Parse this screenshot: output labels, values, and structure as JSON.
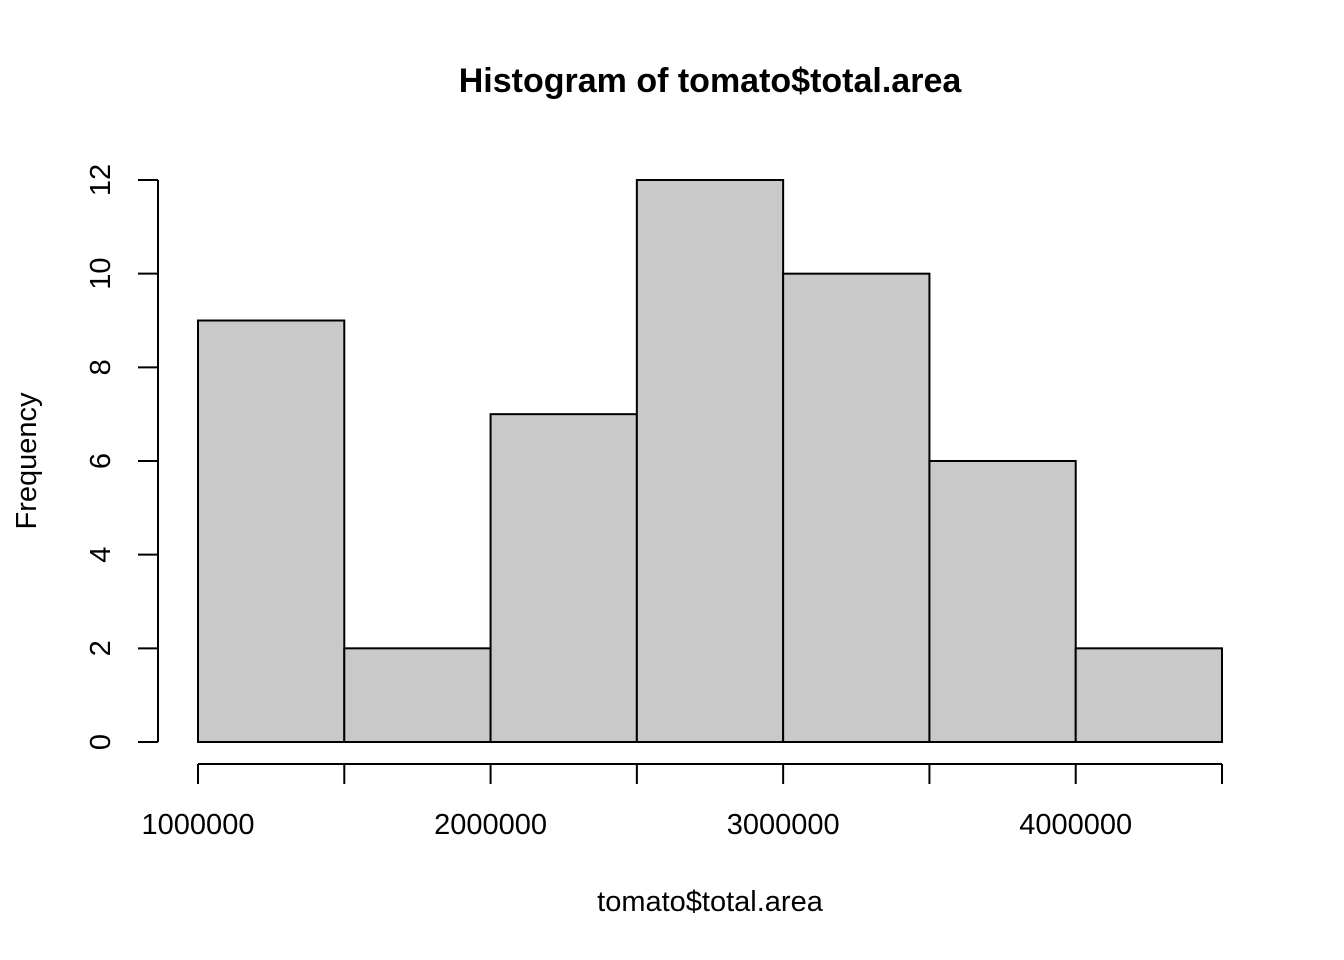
{
  "chart_data": {
    "type": "bar",
    "title": "Histogram of tomato$total.area",
    "xlabel": "tomato$total.area",
    "ylabel": "Frequency",
    "bins": [
      {
        "start": 1000000,
        "end": 1500000,
        "count": 9
      },
      {
        "start": 1500000,
        "end": 2000000,
        "count": 2
      },
      {
        "start": 2000000,
        "end": 2500000,
        "count": 7
      },
      {
        "start": 2500000,
        "end": 3000000,
        "count": 12
      },
      {
        "start": 3000000,
        "end": 3500000,
        "count": 10
      },
      {
        "start": 3500000,
        "end": 4000000,
        "count": 6
      },
      {
        "start": 4000000,
        "end": 4500000,
        "count": 2
      }
    ],
    "xlim": [
      1000000,
      4500000
    ],
    "ylim": [
      0,
      12
    ],
    "x_ticks": [
      1000000,
      1500000,
      2000000,
      2500000,
      3000000,
      3500000,
      4000000,
      4500000
    ],
    "x_tick_labels": [
      {
        "value": 1000000,
        "label": "1000000"
      },
      {
        "value": 2000000,
        "label": "2000000"
      },
      {
        "value": 3000000,
        "label": "3000000"
      },
      {
        "value": 4000000,
        "label": "4000000"
      }
    ],
    "y_ticks": [
      0,
      2,
      4,
      6,
      8,
      10,
      12
    ],
    "y_tick_labels": [
      "0",
      "2",
      "4",
      "6",
      "8",
      "10",
      "12"
    ],
    "bar_fill": "#c9c9c9",
    "bar_stroke": "#000000",
    "grid": false,
    "legend": "none"
  }
}
